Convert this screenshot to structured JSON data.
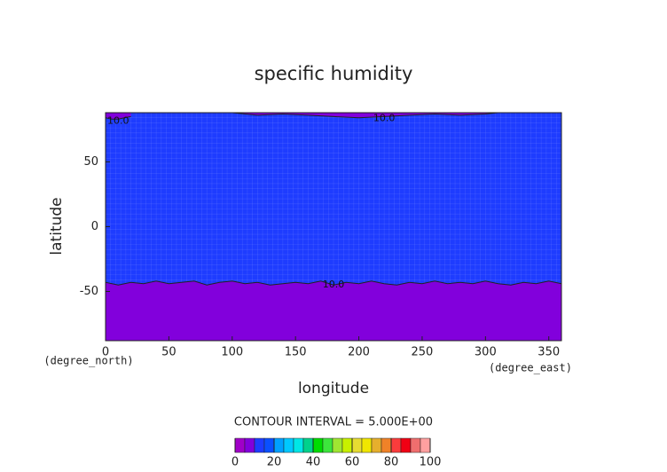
{
  "chart_data": {
    "type": "contour",
    "title": "specific humidity",
    "xlabel": "longitude",
    "ylabel": "latitude",
    "x_unit": "(degree_east)",
    "y_unit": "(degree_north)",
    "xlim": [
      0,
      360
    ],
    "ylim": [
      -88,
      88
    ],
    "xticks": [
      0,
      50,
      100,
      150,
      200,
      250,
      300,
      350
    ],
    "yticks": [
      -50,
      0,
      50
    ],
    "contour_interval_label": "CONTOUR INTERVAL = 5.000E+00",
    "colorbar_lim": [
      0,
      100
    ],
    "colorbar_ticks": [
      0,
      20,
      40,
      60,
      80,
      100
    ],
    "colors": [
      "#a000c8",
      "#8200dc",
      "#1e3cff",
      "#0a50ff",
      "#00a0ff",
      "#00c8ff",
      "#00e6e6",
      "#00d28c",
      "#00dc00",
      "#3ce63c",
      "#a0e632",
      "#c8f000",
      "#e6dc32",
      "#f0e600",
      "#e6af2d",
      "#f08228",
      "#fa3c3c",
      "#f00014",
      "#f06e6e",
      "#ffa0a0"
    ],
    "contours": [
      {
        "level": 10,
        "label": "10.0",
        "side": "south",
        "x": [
          0,
          10,
          20,
          30,
          40,
          50,
          60,
          70,
          80,
          90,
          100,
          110,
          120,
          130,
          140,
          150,
          160,
          170,
          180,
          190,
          200,
          210,
          220,
          230,
          240,
          250,
          260,
          270,
          280,
          290,
          300,
          310,
          320,
          330,
          340,
          350,
          360
        ],
        "y": [
          -43,
          -45,
          -43,
          -44,
          -42,
          -44,
          -43,
          -42,
          -45,
          -43,
          -42,
          -44,
          -43,
          -45,
          -44,
          -43,
          -44,
          -42,
          -45,
          -43,
          -44,
          -42,
          -44,
          -45,
          -43,
          -44,
          -42,
          -44,
          -43,
          -44,
          -42,
          -44,
          -45,
          -43,
          -44,
          -42,
          -44
        ]
      },
      {
        "level": 10,
        "label": "10.0",
        "side": "north",
        "x": [
          100,
          120,
          140,
          160,
          180,
          200,
          220,
          240,
          260,
          280,
          300,
          310
        ],
        "y": [
          88,
          86,
          87,
          86,
          85,
          84,
          85,
          86,
          87,
          86,
          87,
          88
        ]
      },
      {
        "level": 10,
        "label": "10.0",
        "side": "north",
        "x": [
          0,
          5,
          10,
          15,
          20
        ],
        "y": [
          84,
          83,
          83,
          84,
          85
        ]
      }
    ]
  }
}
